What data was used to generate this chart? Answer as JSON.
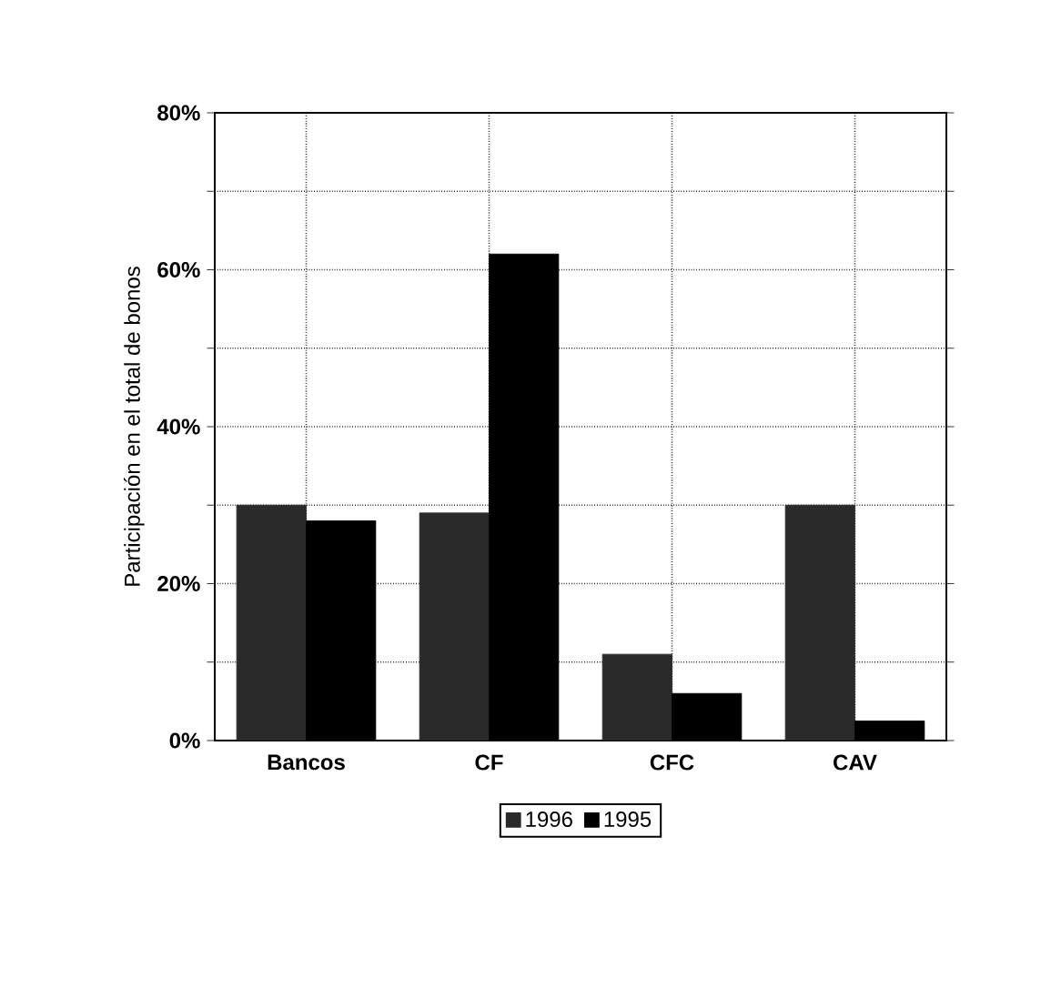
{
  "chart_data": {
    "type": "bar",
    "ylabel": "Participación en el total de bonos",
    "categories": [
      "Bancos",
      "CF",
      "CFC",
      "CAV"
    ],
    "series": [
      {
        "name": "1996",
        "color": "#2a2a2a",
        "values": [
          30,
          29,
          11,
          30
        ]
      },
      {
        "name": "1995",
        "color": "#000000",
        "values": [
          28,
          62,
          6,
          2.5
        ]
      }
    ],
    "ylim": [
      0,
      80
    ],
    "yticks": [
      {
        "value": 0,
        "label": "0%"
      },
      {
        "value": 10,
        "label": null
      },
      {
        "value": 20,
        "label": "20%"
      },
      {
        "value": 30,
        "label": null
      },
      {
        "value": 40,
        "label": "40%"
      },
      {
        "value": 50,
        "label": null
      },
      {
        "value": 60,
        "label": "60%"
      },
      {
        "value": 70,
        "label": null
      },
      {
        "value": 80,
        "label": "80%"
      }
    ],
    "grid": true,
    "legend": "bottom"
  }
}
